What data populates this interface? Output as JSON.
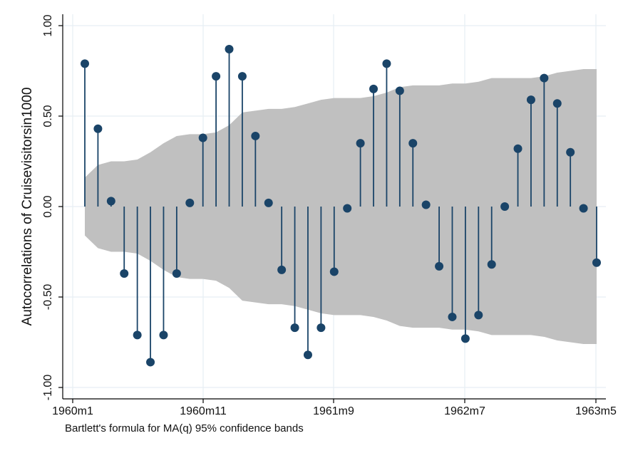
{
  "chart_data": {
    "type": "scatter",
    "ylabel": "Autocorrelations of Cruisevisitorsin1000",
    "xlabel": "",
    "note": "Bartlett's formula for MA(q) 95% confidence bands",
    "x_tick_labels": [
      "1960m1",
      "1960m11",
      "1961m9",
      "1962m7",
      "1963m5"
    ],
    "y_tick_labels": [
      "-1.00",
      "-0.50",
      "0.00",
      "0.50",
      "1.00"
    ],
    "y_ticks": [
      -1.0,
      -0.5,
      0.0,
      0.5,
      1.0
    ],
    "ylim": [
      -1.0,
      1.0
    ],
    "grid": true,
    "colors": {
      "marker": "#1a4468",
      "band": "#c0c0c0",
      "grid": "#e6eef3"
    },
    "lags": [
      1,
      2,
      3,
      4,
      5,
      6,
      7,
      8,
      9,
      10,
      11,
      12,
      13,
      14,
      15,
      16,
      17,
      18,
      19,
      20,
      21,
      22,
      23,
      24,
      25,
      26,
      27,
      28,
      29,
      30,
      31,
      32,
      33,
      34,
      35,
      36,
      37,
      38,
      39,
      40
    ],
    "values": [
      0.79,
      0.43,
      0.03,
      -0.37,
      -0.71,
      -0.86,
      -0.71,
      -0.37,
      0.02,
      0.38,
      0.72,
      0.87,
      0.72,
      0.39,
      0.02,
      -0.35,
      -0.67,
      -0.82,
      -0.67,
      -0.36,
      -0.01,
      0.35,
      0.65,
      0.79,
      0.64,
      0.35,
      0.01,
      -0.33,
      -0.61,
      -0.73,
      -0.6,
      -0.32,
      0.0,
      0.32,
      0.59,
      0.71,
      0.57,
      0.3,
      -0.01,
      -0.31
    ],
    "band": [
      0.16,
      0.23,
      0.25,
      0.25,
      0.26,
      0.3,
      0.35,
      0.39,
      0.4,
      0.4,
      0.41,
      0.45,
      0.52,
      0.53,
      0.54,
      0.54,
      0.55,
      0.57,
      0.59,
      0.6,
      0.6,
      0.6,
      0.61,
      0.63,
      0.66,
      0.67,
      0.67,
      0.67,
      0.68,
      0.68,
      0.69,
      0.71,
      0.71,
      0.71,
      0.71,
      0.72,
      0.74,
      0.75,
      0.76,
      0.76
    ]
  }
}
